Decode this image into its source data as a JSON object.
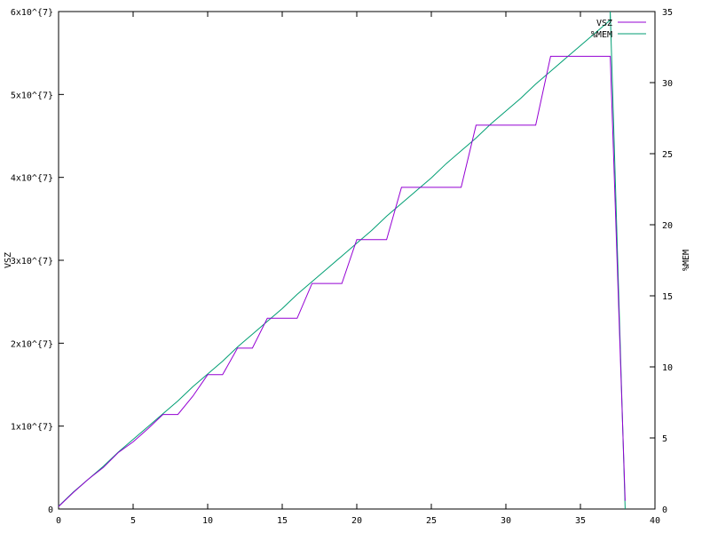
{
  "chart_data": {
    "type": "line",
    "title": "",
    "xlabel": "",
    "ylabel": "VSZ",
    "y2label": "%MEM",
    "xlim": [
      0,
      40
    ],
    "ylim": [
      0,
      60000000
    ],
    "y2lim": [
      0,
      35
    ],
    "grid": false,
    "legend_position": "top-right",
    "x_ticks": [
      "0",
      "5",
      "10",
      "15",
      "20",
      "25",
      "30",
      "35",
      "40"
    ],
    "y_ticks": [
      "0",
      "1x10^{7}",
      "2x10^{7}",
      "3x10^{7}",
      "4x10^{7}",
      "5x10^{7}",
      "6x10^{7}"
    ],
    "y2_ticks": [
      "0",
      "5",
      "10",
      "15",
      "20",
      "25",
      "30",
      "35"
    ],
    "series": [
      {
        "name": "VSZ",
        "axis": "left",
        "color": "#9400D3",
        "x": [
          0,
          1,
          2,
          3,
          4,
          5,
          6,
          7,
          8,
          9,
          10,
          11,
          12,
          13,
          14,
          15,
          16,
          17,
          18,
          19,
          20,
          21,
          22,
          23,
          24,
          25,
          26,
          27,
          28,
          29,
          30,
          31,
          32,
          33,
          34,
          35,
          36,
          37,
          38
        ],
        "values": [
          300000,
          2000000,
          3600000,
          5000000,
          6800000,
          8100000,
          9700000,
          11400000,
          11400000,
          13600000,
          16200000,
          16200000,
          19400000,
          19400000,
          23000000,
          23000000,
          23000000,
          27200000,
          27200000,
          27200000,
          32500000,
          32500000,
          32500000,
          38800000,
          38800000,
          38800000,
          38800000,
          38800000,
          46300000,
          46300000,
          46300000,
          46300000,
          46300000,
          54600000,
          54600000,
          54600000,
          54600000,
          54600000,
          1000000
        ]
      },
      {
        "name": "%MEM",
        "axis": "right",
        "color": "#009E73",
        "x": [
          0,
          1,
          2,
          3,
          4,
          5,
          6,
          7,
          8,
          9,
          10,
          11,
          12,
          13,
          14,
          15,
          16,
          17,
          18,
          19,
          20,
          21,
          22,
          23,
          24,
          25,
          26,
          27,
          28,
          29,
          30,
          31,
          32,
          33,
          34,
          35,
          36,
          37,
          37,
          38
        ],
        "values": [
          0.2,
          1.2,
          2.1,
          3.0,
          4.0,
          4.9,
          5.8,
          6.7,
          7.6,
          8.6,
          9.5,
          10.4,
          11.4,
          12.3,
          13.2,
          14.1,
          15.1,
          16.0,
          16.9,
          17.8,
          18.7,
          19.6,
          20.6,
          21.5,
          22.4,
          23.3,
          24.3,
          25.2,
          26.1,
          27.1,
          28.0,
          28.9,
          29.9,
          30.8,
          31.7,
          32.6,
          33.5,
          34.4,
          35.0,
          0
        ]
      }
    ]
  }
}
